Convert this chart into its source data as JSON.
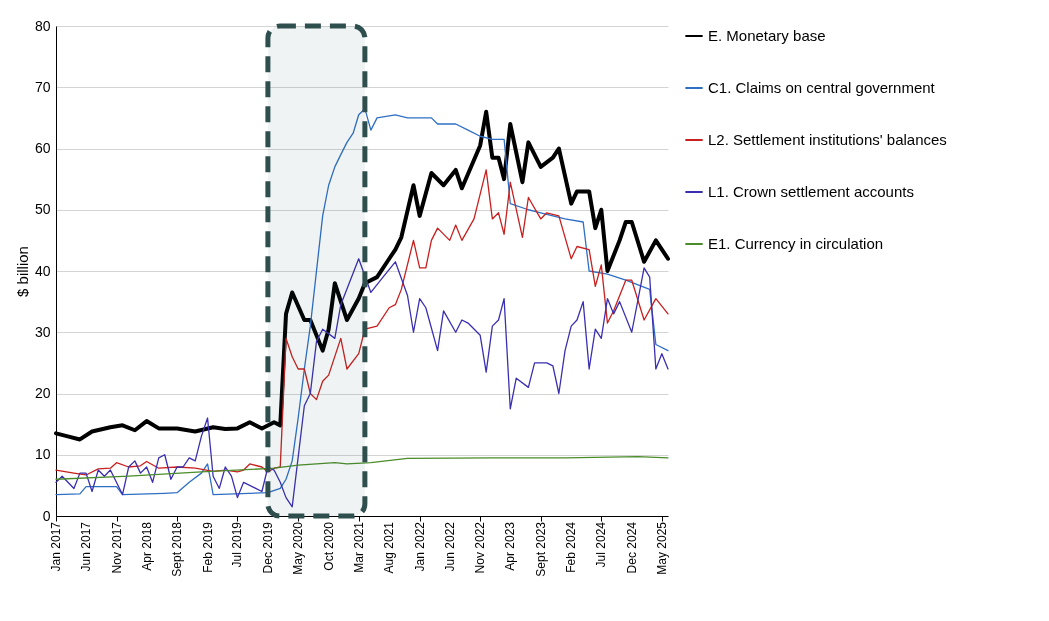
{
  "chart_data": {
    "type": "line",
    "ylabel": "$ billion",
    "xlim": [
      "2017-01",
      "2025-06"
    ],
    "ylim": [
      0,
      80
    ],
    "yticks": [
      0,
      10,
      20,
      30,
      40,
      50,
      60,
      70,
      80
    ],
    "xticks": [
      {
        "value": "2017-01",
        "label": "Jan 2017"
      },
      {
        "value": "2017-06",
        "label": "Jun 2017"
      },
      {
        "value": "2017-11",
        "label": "Nov 2017"
      },
      {
        "value": "2018-04",
        "label": "Apr 2018"
      },
      {
        "value": "2018-09",
        "label": "Sept 2018"
      },
      {
        "value": "2019-02",
        "label": "Feb 2019"
      },
      {
        "value": "2019-07",
        "label": "Jul 2019"
      },
      {
        "value": "2019-12",
        "label": "Dec 2019"
      },
      {
        "value": "2020-05",
        "label": "May 2020"
      },
      {
        "value": "2020-10",
        "label": "Oct 2020"
      },
      {
        "value": "2021-03",
        "label": "Mar 2021"
      },
      {
        "value": "2021-08",
        "label": "Aug 2021"
      },
      {
        "value": "2022-01",
        "label": "Jan 2022"
      },
      {
        "value": "2022-06",
        "label": "Jun 2022"
      },
      {
        "value": "2022-11",
        "label": "Nov 2022"
      },
      {
        "value": "2023-04",
        "label": "Apr 2023"
      },
      {
        "value": "2023-09",
        "label": "Sept 2023"
      },
      {
        "value": "2024-02",
        "label": "Feb 2024"
      },
      {
        "value": "2024-07",
        "label": "Jul 2024"
      },
      {
        "value": "2024-12",
        "label": "Dec 2024"
      },
      {
        "value": "2025-05",
        "label": "May 2025"
      }
    ],
    "grid": "y",
    "legend": "right",
    "marker": "none",
    "line_style": "solid",
    "bands": [
      {
        "axis": "x",
        "from": "2019-12",
        "to": "2021-04",
        "color": "#2f4f4f"
      }
    ],
    "series": [
      {
        "name": "E. Monetary base",
        "color": "#000000",
        "x": [
          "2017-01",
          "2017-03",
          "2017-05",
          "2017-07",
          "2017-10",
          "2017-12",
          "2018-02",
          "2018-04",
          "2018-06",
          "2018-09",
          "2018-12",
          "2019-03",
          "2019-05",
          "2019-07",
          "2019-09",
          "2019-11",
          "2020-01",
          "2020-02",
          "2020-03",
          "2020-04",
          "2020-06",
          "2020-07",
          "2020-09",
          "2020-10",
          "2020-11",
          "2021-01",
          "2021-03",
          "2021-04",
          "2021-06",
          "2021-08",
          "2021-09",
          "2021-10",
          "2021-12",
          "2022-01",
          "2022-03",
          "2022-05",
          "2022-07",
          "2022-08",
          "2022-11",
          "2022-12",
          "2023-01",
          "2023-02",
          "2023-03",
          "2023-04",
          "2023-06",
          "2023-07",
          "2023-09",
          "2023-11",
          "2023-12",
          "2024-02",
          "2024-03",
          "2024-05",
          "2024-06",
          "2024-07",
          "2024-08",
          "2024-10",
          "2024-11",
          "2024-12",
          "2025-02",
          "2025-04",
          "2025-06"
        ],
        "values": [
          13.5,
          13,
          12.5,
          13.8,
          14.5,
          14.8,
          14,
          15.5,
          14.3,
          14.3,
          13.8,
          14.5,
          14.2,
          14.3,
          15.3,
          14.3,
          15.3,
          14.8,
          33,
          36.5,
          32,
          32,
          27,
          30.5,
          38,
          32,
          35.5,
          38,
          39,
          42,
          43.5,
          45.5,
          54,
          49,
          56,
          54,
          56.5,
          53.5,
          60.5,
          66,
          58.5,
          58.5,
          55,
          64,
          54.5,
          61,
          57,
          58.5,
          60,
          51,
          53,
          53,
          47,
          50,
          40,
          45,
          48,
          48,
          41.5,
          45,
          42
        ]
      },
      {
        "name": "C1. Claims on central government",
        "color": "#2e6fc4",
        "x": [
          "2017-01",
          "2017-05",
          "2017-06",
          "2017-11",
          "2017-12",
          "2018-07",
          "2018-09",
          "2018-11",
          "2019-01",
          "2019-02",
          "2019-03",
          "2019-12",
          "2020-02",
          "2020-03",
          "2020-04",
          "2020-05",
          "2020-06",
          "2020-07",
          "2020-08",
          "2020-09",
          "2020-10",
          "2020-11",
          "2020-12",
          "2021-01",
          "2021-02",
          "2021-03",
          "2021-04",
          "2021-05",
          "2021-06",
          "2021-09",
          "2021-11",
          "2022-03",
          "2022-04",
          "2022-07",
          "2022-09",
          "2022-11",
          "2023-01",
          "2023-03",
          "2023-04",
          "2023-07",
          "2023-09",
          "2023-11",
          "2024-01",
          "2024-04",
          "2024-05",
          "2024-08",
          "2024-11",
          "2025-03",
          "2025-04",
          "2025-06"
        ],
        "values": [
          3.5,
          3.6,
          4.8,
          4.8,
          3.5,
          3.7,
          3.8,
          5.5,
          7,
          8.5,
          3.5,
          3.8,
          4.5,
          6,
          9,
          16,
          24,
          31,
          40,
          49,
          54,
          57,
          59,
          61,
          62.5,
          65.5,
          66.5,
          63,
          65,
          65.5,
          65,
          65,
          64,
          64,
          63,
          62,
          61.5,
          61.5,
          51,
          50,
          49.5,
          49,
          48.5,
          48,
          40,
          39.5,
          38.5,
          37,
          28,
          27
        ]
      },
      {
        "name": "L2. Settlement institutions' balances",
        "color": "#c8201e",
        "x": [
          "2017-01",
          "2017-04",
          "2017-06",
          "2017-08",
          "2017-10",
          "2017-11",
          "2018-01",
          "2018-03",
          "2018-04",
          "2018-06",
          "2018-09",
          "2018-12",
          "2019-03",
          "2019-05",
          "2019-07",
          "2019-08",
          "2019-09",
          "2019-11",
          "2019-12",
          "2020-01",
          "2020-02",
          "2020-03",
          "2020-04",
          "2020-05",
          "2020-06",
          "2020-07",
          "2020-08",
          "2020-09",
          "2020-10",
          "2020-12",
          "2021-01",
          "2021-03",
          "2021-04",
          "2021-06",
          "2021-08",
          "2021-09",
          "2021-10",
          "2021-12",
          "2022-01",
          "2022-02",
          "2022-03",
          "2022-04",
          "2022-06",
          "2022-07",
          "2022-08",
          "2022-10",
          "2022-12",
          "2023-01",
          "2023-02",
          "2023-03",
          "2023-04",
          "2023-06",
          "2023-07",
          "2023-09",
          "2023-10",
          "2023-12",
          "2024-02",
          "2024-03",
          "2024-05",
          "2024-06",
          "2024-07",
          "2024-08",
          "2024-09",
          "2024-11",
          "2024-12",
          "2025-02",
          "2025-04",
          "2025-06"
        ],
        "values": [
          7.5,
          7,
          6.7,
          7.7,
          7.8,
          8.7,
          8,
          8.2,
          8.9,
          7.8,
          8,
          7.8,
          7.3,
          7.5,
          7.2,
          7.5,
          8.5,
          8,
          7.2,
          7.8,
          8,
          29,
          26,
          24,
          24,
          20,
          19,
          22,
          23,
          29,
          24,
          26.5,
          30.5,
          31,
          34,
          34.5,
          37,
          45,
          40.5,
          40.5,
          45,
          47,
          45,
          47.5,
          45,
          48.5,
          56.5,
          48.5,
          49.5,
          46,
          54.5,
          45.5,
          52,
          48.5,
          49.5,
          49,
          42,
          44,
          43.5,
          37.5,
          41,
          31.5,
          33.5,
          38.5,
          38.5,
          32,
          35.5,
          33
        ]
      },
      {
        "name": "L1. Crown settlement accounts",
        "color": "#3a2fb0",
        "x": [
          "2017-01",
          "2017-02",
          "2017-04",
          "2017-05",
          "2017-06",
          "2017-07",
          "2017-08",
          "2017-09",
          "2017-10",
          "2017-12",
          "2018-01",
          "2018-02",
          "2018-03",
          "2018-04",
          "2018-05",
          "2018-06",
          "2018-07",
          "2018-08",
          "2018-09",
          "2018-10",
          "2018-11",
          "2018-12",
          "2019-01",
          "2019-02",
          "2019-03",
          "2019-04",
          "2019-05",
          "2019-06",
          "2019-07",
          "2019-08",
          "2019-10",
          "2019-11",
          "2019-12",
          "2020-01",
          "2020-02",
          "2020-03",
          "2020-04",
          "2020-06",
          "2020-07",
          "2020-08",
          "2020-09",
          "2020-11",
          "2020-12",
          "2021-03",
          "2021-05",
          "2021-07",
          "2021-09",
          "2021-11",
          "2021-12",
          "2022-01",
          "2022-02",
          "2022-04",
          "2022-05",
          "2022-07",
          "2022-08",
          "2022-09",
          "2022-11",
          "2022-12",
          "2023-01",
          "2023-02",
          "2023-03",
          "2023-04",
          "2023-05",
          "2023-07",
          "2023-08",
          "2023-10",
          "2023-11",
          "2023-12",
          "2024-01",
          "2024-02",
          "2024-03",
          "2024-04",
          "2024-05",
          "2024-06",
          "2024-07",
          "2024-08",
          "2024-09",
          "2024-10",
          "2024-12",
          "2025-02",
          "2025-03",
          "2025-04",
          "2025-05",
          "2025-06"
        ],
        "values": [
          5.5,
          6.5,
          4.5,
          7,
          7,
          4,
          7.5,
          6.5,
          7.5,
          3.5,
          8,
          9,
          7,
          8,
          5.5,
          9.5,
          10,
          6,
          8,
          8,
          9.5,
          9,
          13,
          16,
          6.5,
          4.5,
          8,
          6.5,
          3,
          5.5,
          4.5,
          4,
          8,
          7.5,
          5.5,
          3,
          1.5,
          18,
          20,
          28.5,
          30.5,
          29,
          34.5,
          42,
          36.5,
          39,
          41.5,
          36,
          30,
          35.5,
          34,
          27,
          33.5,
          30,
          32,
          31.5,
          29.5,
          23.5,
          31,
          32,
          35.5,
          17.5,
          22.5,
          21,
          25,
          25,
          24.5,
          20,
          27,
          31,
          32,
          35,
          24,
          30.5,
          29,
          35.5,
          33,
          35,
          30,
          40.5,
          39,
          24,
          26.5,
          24
        ]
      },
      {
        "name": "E1. Currency in circulation",
        "color": "#4a8c2a",
        "x": [
          "2017-01",
          "2018-01",
          "2019-01",
          "2020-01",
          "2020-05",
          "2020-11",
          "2021-01",
          "2021-05",
          "2021-11",
          "2023-01",
          "2024-01",
          "2025-01",
          "2025-06"
        ],
        "values": [
          6,
          6.5,
          7.2,
          7.8,
          8.3,
          8.7,
          8.5,
          8.7,
          9.4,
          9.5,
          9.5,
          9.7,
          9.5
        ]
      }
    ]
  }
}
